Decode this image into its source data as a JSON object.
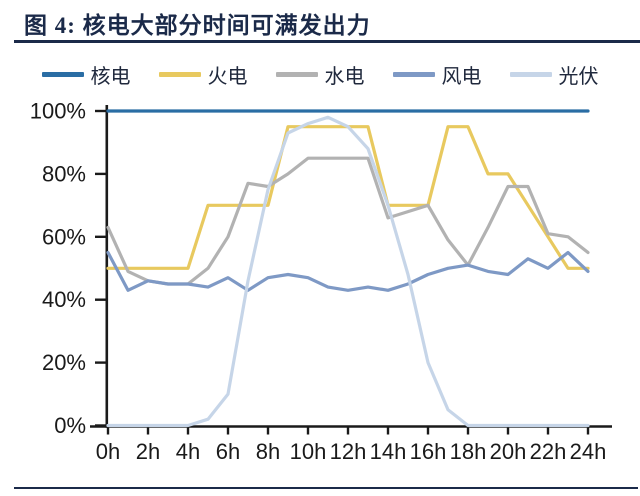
{
  "header": {
    "title": "图 4: 核电大部分时间可满发出力"
  },
  "accent_color": "#1b2a49",
  "chart_data": {
    "type": "line",
    "title": "图 4: 核电大部分时间可满发出力",
    "x_unit": "hour",
    "x": [
      0,
      1,
      2,
      3,
      4,
      5,
      6,
      7,
      8,
      9,
      10,
      11,
      12,
      13,
      14,
      15,
      16,
      17,
      18,
      19,
      20,
      21,
      22,
      23,
      24
    ],
    "x_ticks": [
      0,
      2,
      4,
      6,
      8,
      10,
      12,
      14,
      16,
      18,
      20,
      22,
      24
    ],
    "x_tick_labels": [
      "0h",
      "2h",
      "4h",
      "6h",
      "8h",
      "10h",
      "12h",
      "14h",
      "16h",
      "18h",
      "20h",
      "22h",
      "24h"
    ],
    "y_ticks": [
      0,
      20,
      40,
      60,
      80,
      100
    ],
    "y_tick_labels": [
      "0%",
      "20%",
      "40%",
      "60%",
      "80%",
      "100%"
    ],
    "xlim": [
      0,
      24
    ],
    "ylim": [
      0,
      100
    ],
    "grid": false,
    "legend_position": "top",
    "axis_color": "#1a1a1a",
    "series": [
      {
        "key": "nuclear",
        "name": "核电",
        "color": "#2a6da4",
        "values": [
          100,
          100,
          100,
          100,
          100,
          100,
          100,
          100,
          100,
          100,
          100,
          100,
          100,
          100,
          100,
          100,
          100,
          100,
          100,
          100,
          100,
          100,
          100,
          100,
          100
        ]
      },
      {
        "key": "thermal",
        "name": "火电",
        "color": "#e8c95f",
        "values": [
          50,
          50,
          50,
          50,
          50,
          70,
          70,
          70,
          70,
          95,
          95,
          95,
          95,
          95,
          70,
          70,
          70,
          95,
          95,
          80,
          80,
          70,
          60,
          50,
          50
        ]
      },
      {
        "key": "hydro",
        "name": "水电",
        "color": "#b2b2b2",
        "values": [
          63,
          49,
          46,
          45,
          45,
          50,
          60,
          77,
          76,
          80,
          85,
          85,
          85,
          85,
          66,
          68,
          70,
          59,
          51,
          63,
          76,
          76,
          61,
          60,
          55
        ]
      },
      {
        "key": "wind",
        "name": "风电",
        "color": "#7e99c5",
        "values": [
          55,
          43,
          46,
          45,
          45,
          44,
          47,
          43,
          47,
          48,
          47,
          44,
          43,
          44,
          43,
          45,
          48,
          50,
          51,
          49,
          48,
          53,
          50,
          55,
          49
        ]
      },
      {
        "key": "solar",
        "name": "光伏",
        "color": "#c6d5e8",
        "values": [
          0,
          0,
          0,
          0,
          0,
          2,
          10,
          46,
          75,
          93,
          96,
          98,
          95,
          88,
          70,
          48,
          20,
          5,
          0,
          0,
          0,
          0,
          0,
          0,
          0
        ]
      }
    ]
  }
}
